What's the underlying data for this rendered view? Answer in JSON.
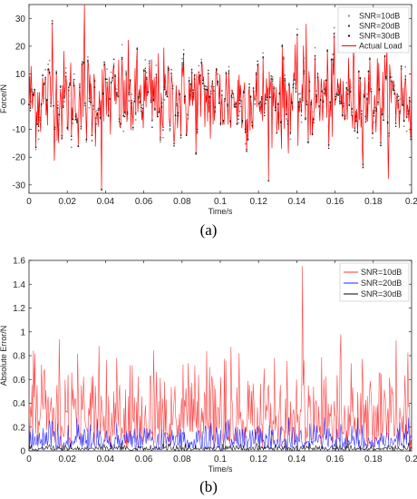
{
  "captions": {
    "a": "(a)",
    "b": "(b)"
  },
  "chart_data": [
    {
      "type": "line",
      "title": "",
      "xlabel": "Time/s",
      "ylabel": "Force/N",
      "xlim": [
        0,
        0.2
      ],
      "ylim": [
        -33,
        35
      ],
      "xticks": [
        "0",
        "0.02",
        "0.04",
        "0.06",
        "0.08",
        "0.1",
        "0.12",
        "0.14",
        "0.16",
        "0.18",
        "0.2"
      ],
      "xtick_values": [
        0,
        0.02,
        0.04,
        0.06,
        0.08,
        0.1,
        0.12,
        0.14,
        0.16,
        0.18,
        0.2
      ],
      "yticks": [
        "-30",
        "-20",
        "-10",
        "0",
        "10",
        "20",
        "30"
      ],
      "ytick_values": [
        -30,
        -20,
        -10,
        0,
        10,
        20,
        30
      ],
      "grid": false,
      "legend_position": "top-right",
      "series": [
        {
          "name": "SNR=10dB",
          "style": "markers",
          "color": "#8a8a8a"
        },
        {
          "name": "SNR=20dB",
          "style": "markers",
          "color": "#2a2a2a"
        },
        {
          "name": "SNR=30dB",
          "style": "markers",
          "color": "#000000"
        },
        {
          "name": "Actual Load",
          "style": "line",
          "color": "#ff0000"
        }
      ],
      "signal": {
        "mean": 1,
        "approx_range": [
          -33,
          35
        ],
        "spikes": [
          [
            0.029,
            35
          ],
          [
            0.038,
            -32
          ],
          [
            0.012,
            28
          ],
          [
            0.145,
            28
          ]
        ]
      }
    },
    {
      "type": "line",
      "title": "",
      "xlabel": "Time/s",
      "ylabel": "Absolute Error/N",
      "xlim": [
        0,
        0.2
      ],
      "ylim": [
        0,
        1.6
      ],
      "xticks": [
        "0",
        "0.02",
        "0.04",
        "0.06",
        "0.08",
        "0.1",
        "0.12",
        "0.14",
        "0.16",
        "0.18",
        "0.2"
      ],
      "xtick_values": [
        0,
        0.02,
        0.04,
        0.06,
        0.08,
        0.1,
        0.12,
        0.14,
        0.16,
        0.18,
        0.2
      ],
      "yticks": [
        "0",
        "0.2",
        "0.4",
        "0.6",
        "0.8",
        "1",
        "1.2",
        "1.4",
        "1.6"
      ],
      "ytick_values": [
        0,
        0.2,
        0.4,
        0.6,
        0.8,
        1,
        1.2,
        1.4,
        1.6
      ],
      "grid": false,
      "legend_position": "top-right",
      "series": [
        {
          "name": "SNR=10dB",
          "style": "line",
          "color": "#ff3030",
          "typical_max": 1.2,
          "peak": [
            0.143,
            1.55
          ]
        },
        {
          "name": "SNR=20dB",
          "style": "line",
          "color": "#1f1fff",
          "typical_max": 0.28
        },
        {
          "name": "SNR=30dB",
          "style": "line",
          "color": "#000000",
          "typical_max": 0.07
        }
      ]
    }
  ]
}
